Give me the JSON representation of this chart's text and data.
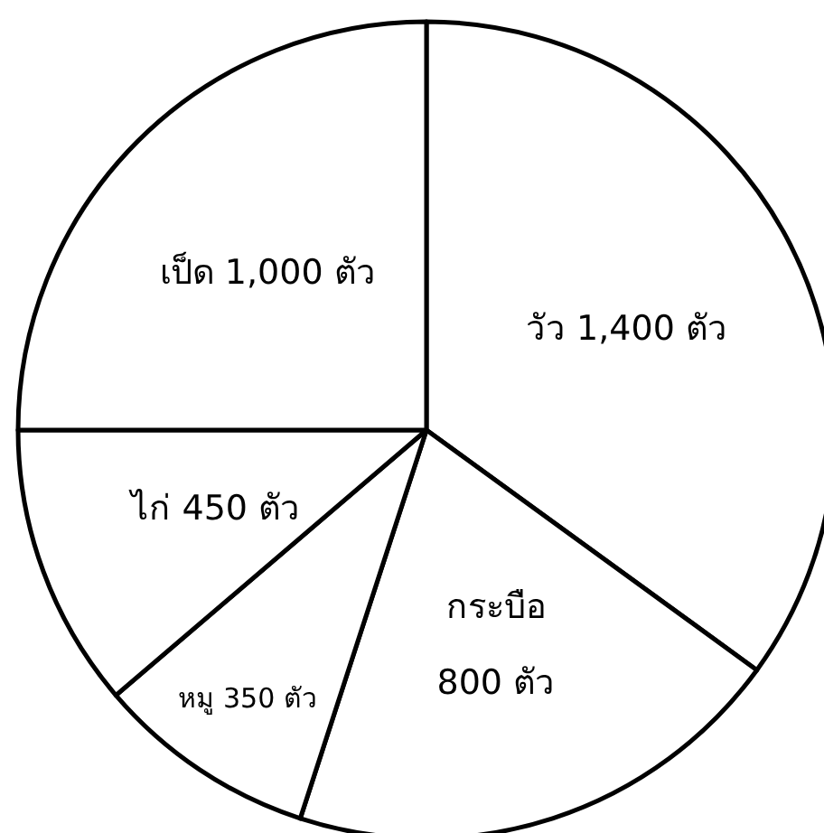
{
  "chart_data": {
    "type": "pie",
    "categories": [
      "วัว",
      "กระบือ",
      "หมู",
      "ไก่",
      "เป็ด"
    ],
    "values": [
      1400,
      800,
      350,
      450,
      1000
    ],
    "value_labels": [
      "1,400 ตัว",
      "800 ตัว",
      "350 ตัว",
      "450 ตัว",
      "1,000 ตัว"
    ],
    "colors": [
      "#ffffff",
      "#ffffff",
      "#ffffff",
      "#ffffff",
      "#ffffff"
    ]
  }
}
